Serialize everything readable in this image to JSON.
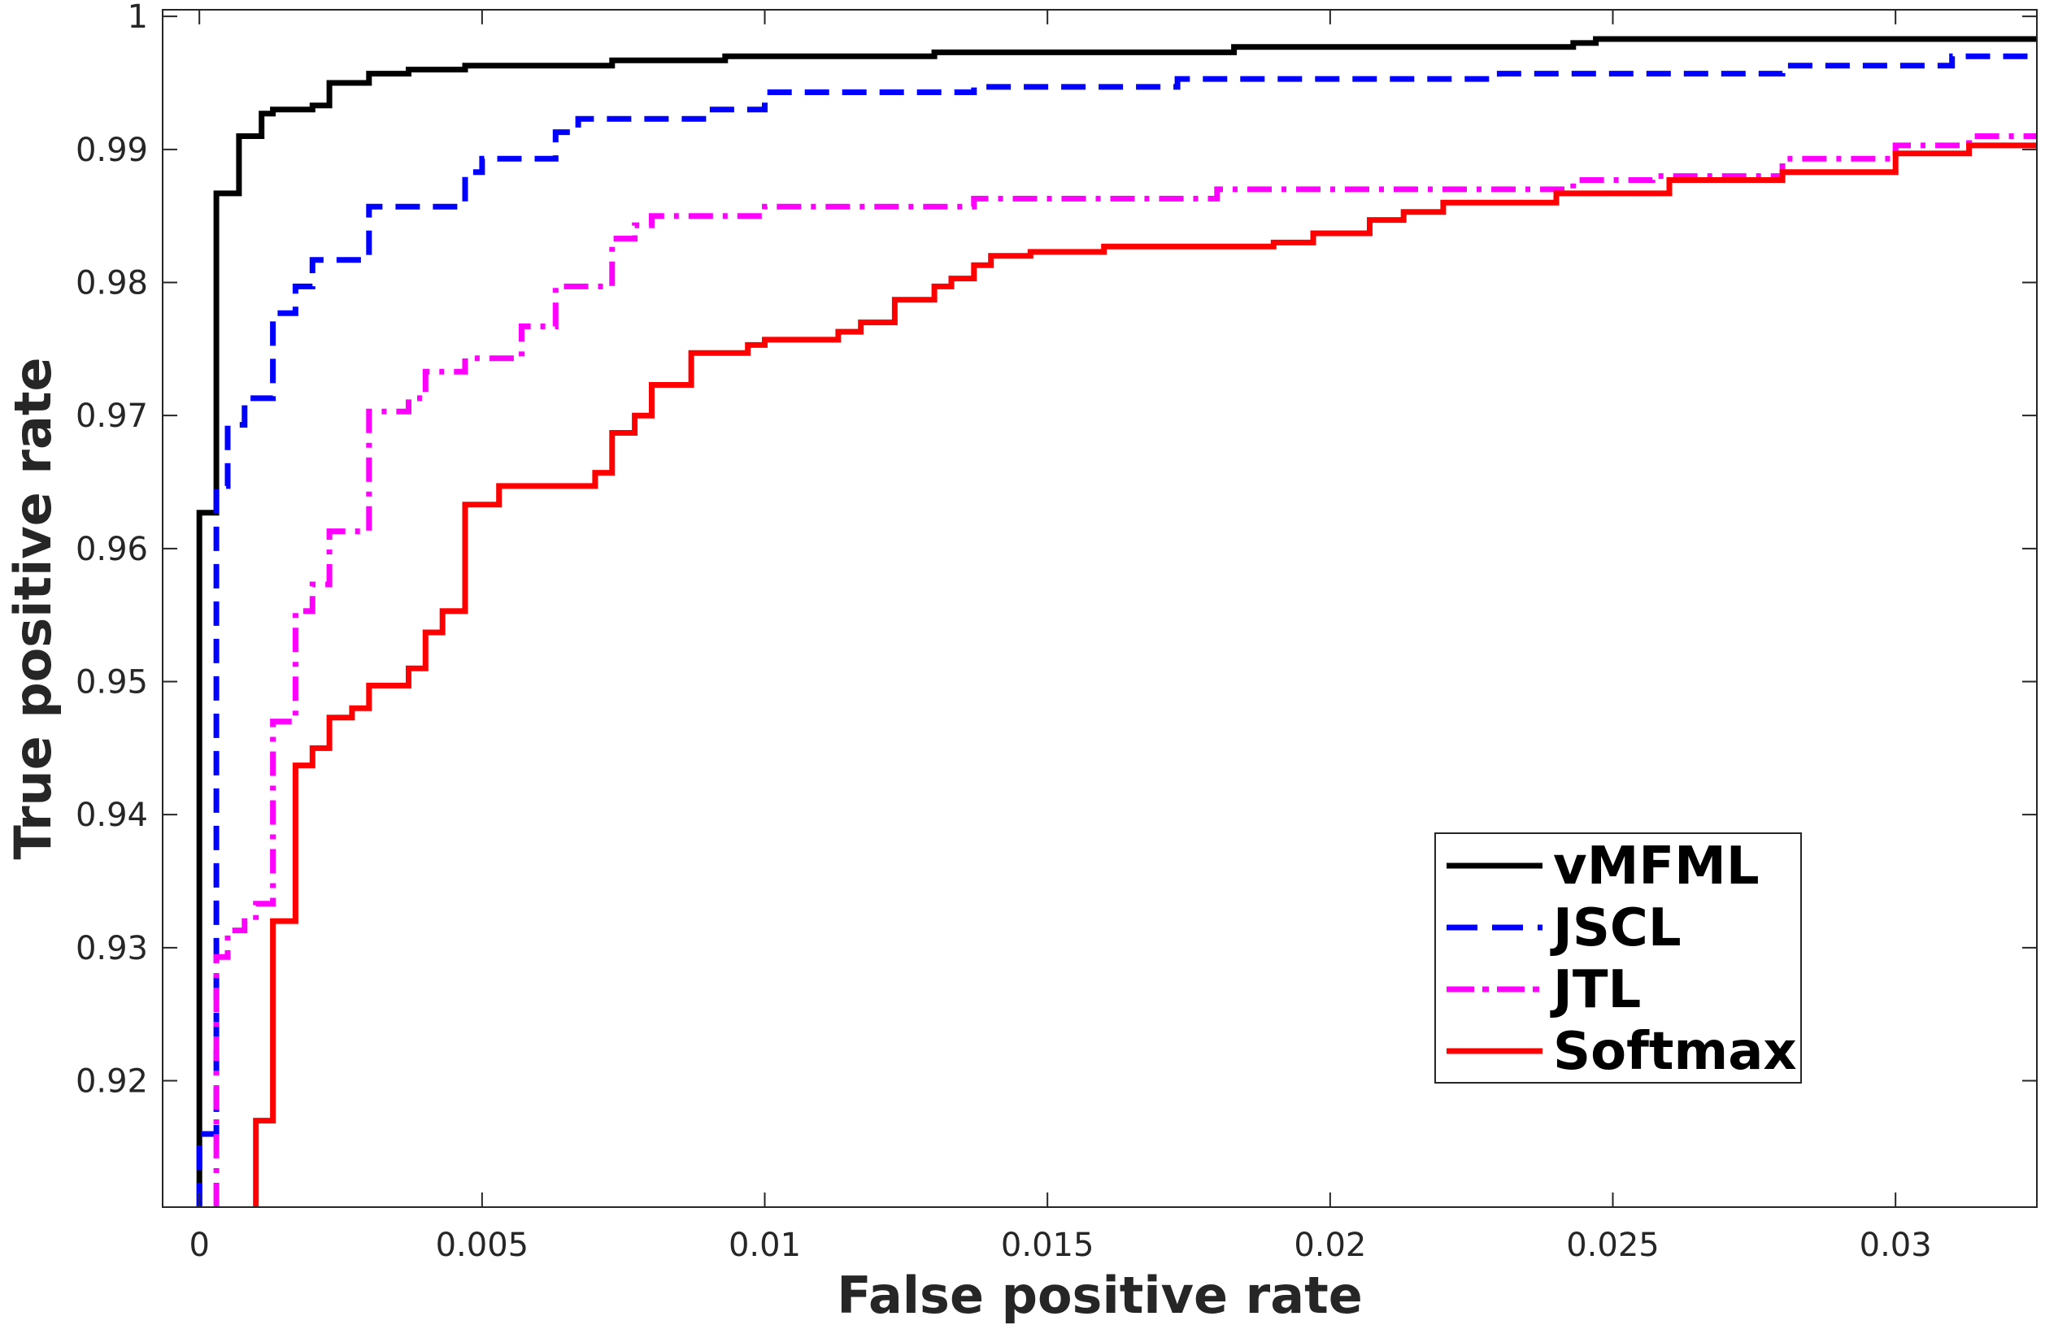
{
  "chart_data": {
    "type": "line",
    "title": "",
    "xlabel": "False positive rate",
    "ylabel": "True positive rate",
    "xlim": [
      -0.00065,
      0.0325
    ],
    "ylim": [
      0.9105,
      1.0005
    ],
    "xticks": [
      0,
      0.005,
      0.01,
      0.015,
      0.02,
      0.025,
      0.03
    ],
    "xtick_labels": [
      "0",
      "0.005",
      "0.01",
      "0.015",
      "0.02",
      "0.025",
      "0.03"
    ],
    "yticks": [
      0.92,
      0.93,
      0.94,
      0.95,
      0.96,
      0.97,
      0.98,
      0.99,
      1.0
    ],
    "ytick_labels": [
      "0.92",
      "0.93",
      "0.94",
      "0.95",
      "0.96",
      "0.97",
      "0.98",
      "0.99",
      "1"
    ],
    "grid": false,
    "legend_position": "bottom-right",
    "series": [
      {
        "name": "vMFML",
        "color": "#000000",
        "style": "solid",
        "x": [
          0,
          0,
          0,
          0.0003,
          0.0003,
          0.0007,
          0.0007,
          0.0011,
          0.0011,
          0.0013,
          0.0013,
          0.002,
          0.002,
          0.0023,
          0.0023,
          0.003,
          0.003,
          0.0037,
          0.0037,
          0.0047,
          0.0047,
          0.006,
          0.006,
          0.0073,
          0.0073,
          0.0093,
          0.0093,
          0.013,
          0.013,
          0.0183,
          0.0183,
          0.0243,
          0.0243,
          0.0247,
          0.0247,
          0.0325
        ],
        "y": [
          0.9105,
          0.9127,
          0.9627,
          0.9627,
          0.9867,
          0.9867,
          0.991,
          0.991,
          0.9927,
          0.9927,
          0.993,
          0.993,
          0.9933,
          0.9933,
          0.995,
          0.995,
          0.9957,
          0.9957,
          0.996,
          0.996,
          0.9963,
          0.9963,
          0.9963,
          0.9963,
          0.9967,
          0.9967,
          0.997,
          0.997,
          0.9973,
          0.9973,
          0.9977,
          0.9977,
          0.998,
          0.998,
          0.9983,
          0.9983
        ]
      },
      {
        "name": "JSCL",
        "color": "#0000ff",
        "style": "dashed",
        "x": [
          0,
          0,
          0.0003,
          0.0003,
          0.0005,
          0.0005,
          0.0008,
          0.0008,
          0.0013,
          0.0013,
          0.0017,
          0.0017,
          0.002,
          0.002,
          0.003,
          0.003,
          0.0047,
          0.0047,
          0.005,
          0.005,
          0.006,
          0.006,
          0.0063,
          0.0063,
          0.0067,
          0.0067,
          0.009,
          0.009,
          0.01,
          0.01,
          0.0137,
          0.0137,
          0.0173,
          0.0173,
          0.023,
          0.023,
          0.028,
          0.028,
          0.031,
          0.031,
          0.0325
        ],
        "y": [
          0.9105,
          0.916,
          0.916,
          0.9647,
          0.9647,
          0.9693,
          0.9693,
          0.9713,
          0.9713,
          0.9777,
          0.9777,
          0.9797,
          0.9797,
          0.9817,
          0.9817,
          0.9857,
          0.9857,
          0.9883,
          0.9883,
          0.9893,
          0.9893,
          0.9893,
          0.9893,
          0.9913,
          0.9913,
          0.9923,
          0.9923,
          0.993,
          0.993,
          0.9943,
          0.9943,
          0.9947,
          0.9947,
          0.9953,
          0.9953,
          0.9957,
          0.9957,
          0.9963,
          0.9963,
          0.997,
          0.997
        ]
      },
      {
        "name": "JTL",
        "color": "#ff00ff",
        "style": "dashdot",
        "x": [
          0.0003,
          0.0003,
          0.0005,
          0.0005,
          0.0008,
          0.0008,
          0.001,
          0.001,
          0.0013,
          0.0013,
          0.0017,
          0.0017,
          0.002,
          0.002,
          0.0023,
          0.0023,
          0.003,
          0.003,
          0.0037,
          0.0037,
          0.004,
          0.004,
          0.0047,
          0.0047,
          0.0057,
          0.0057,
          0.0063,
          0.0063,
          0.0073,
          0.0073,
          0.0077,
          0.0077,
          0.008,
          0.008,
          0.01,
          0.01,
          0.0137,
          0.0137,
          0.018,
          0.018,
          0.0243,
          0.0243,
          0.0257,
          0.0257,
          0.028,
          0.028,
          0.03,
          0.03,
          0.0313,
          0.0313,
          0.0325
        ],
        "y": [
          0.9105,
          0.9293,
          0.9293,
          0.9313,
          0.9313,
          0.932,
          0.932,
          0.9333,
          0.9333,
          0.947,
          0.947,
          0.9553,
          0.9553,
          0.9573,
          0.9573,
          0.9613,
          0.9613,
          0.9703,
          0.9703,
          0.9713,
          0.9713,
          0.9733,
          0.9733,
          0.9743,
          0.9743,
          0.9767,
          0.9767,
          0.9797,
          0.9797,
          0.9833,
          0.9833,
          0.9843,
          0.9843,
          0.985,
          0.985,
          0.9857,
          0.9857,
          0.9863,
          0.9863,
          0.987,
          0.987,
          0.9877,
          0.9877,
          0.988,
          0.988,
          0.9893,
          0.9893,
          0.9903,
          0.9903,
          0.991,
          0.991
        ]
      },
      {
        "name": "Softmax",
        "color": "#ff0000",
        "style": "solid",
        "x": [
          0.001,
          0.001,
          0.0013,
          0.0013,
          0.0017,
          0.0017,
          0.002,
          0.002,
          0.0023,
          0.0023,
          0.0027,
          0.0027,
          0.003,
          0.003,
          0.0037,
          0.0037,
          0.004,
          0.004,
          0.0043,
          0.0043,
          0.0047,
          0.0047,
          0.0053,
          0.0053,
          0.007,
          0.007,
          0.0073,
          0.0073,
          0.0077,
          0.0077,
          0.008,
          0.008,
          0.0087,
          0.0087,
          0.0097,
          0.0097,
          0.01,
          0.01,
          0.0113,
          0.0113,
          0.0117,
          0.0117,
          0.0123,
          0.0123,
          0.013,
          0.013,
          0.0133,
          0.0133,
          0.0137,
          0.0137,
          0.014,
          0.014,
          0.0147,
          0.0147,
          0.016,
          0.016,
          0.019,
          0.019,
          0.0197,
          0.0197,
          0.0207,
          0.0207,
          0.0213,
          0.0213,
          0.022,
          0.022,
          0.024,
          0.024,
          0.026,
          0.026,
          0.028,
          0.028,
          0.03,
          0.03,
          0.0313,
          0.0313,
          0.0325
        ],
        "y": [
          0.9105,
          0.917,
          0.917,
          0.932,
          0.932,
          0.9437,
          0.9437,
          0.945,
          0.945,
          0.9473,
          0.9473,
          0.948,
          0.948,
          0.9497,
          0.9497,
          0.951,
          0.951,
          0.9537,
          0.9537,
          0.9553,
          0.9553,
          0.9633,
          0.9633,
          0.9647,
          0.9647,
          0.9657,
          0.9657,
          0.9687,
          0.9687,
          0.97,
          0.97,
          0.9723,
          0.9723,
          0.9747,
          0.9747,
          0.9753,
          0.9753,
          0.9757,
          0.9757,
          0.9763,
          0.9763,
          0.977,
          0.977,
          0.9787,
          0.9787,
          0.9797,
          0.9797,
          0.9803,
          0.9803,
          0.9813,
          0.9813,
          0.982,
          0.982,
          0.9823,
          0.9823,
          0.9827,
          0.9827,
          0.983,
          0.983,
          0.9837,
          0.9837,
          0.9847,
          0.9847,
          0.9853,
          0.9853,
          0.986,
          0.986,
          0.9867,
          0.9867,
          0.9877,
          0.9877,
          0.9883,
          0.9883,
          0.9897,
          0.9897,
          0.9903,
          0.9903
        ]
      }
    ]
  }
}
